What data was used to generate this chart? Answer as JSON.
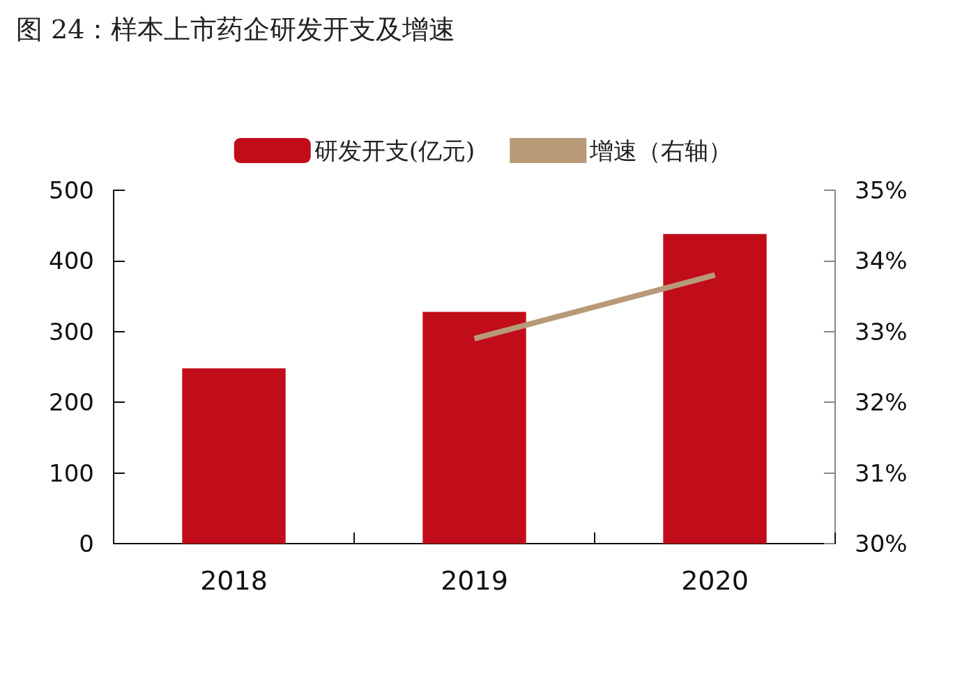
{
  "chart_data": {
    "type": "bar",
    "title": "图 24：样本上市药企研发开支及增速",
    "categories": [
      "2018",
      "2019",
      "2020"
    ],
    "series": [
      {
        "name": "研发开支(亿元)",
        "color": "#c00d19",
        "values": [
          248,
          328,
          438
        ]
      },
      {
        "name": "增速（右轴）",
        "type": "line",
        "axis": "y2",
        "color": "#b89a78",
        "values": [
          null,
          32.9,
          33.8
        ]
      }
    ],
    "ylim": [
      0,
      500
    ],
    "yticks": [
      0,
      100,
      200,
      300,
      400,
      500
    ],
    "y2lim": [
      30,
      35
    ],
    "y2ticks": [
      {
        "value": 30,
        "label": "30%"
      },
      {
        "value": 31,
        "label": "31%"
      },
      {
        "value": 32,
        "label": "32%"
      },
      {
        "value": 33,
        "label": "33%"
      },
      {
        "value": 34,
        "label": "34%"
      },
      {
        "value": 35,
        "label": "35%"
      }
    ],
    "legend": "top",
    "grid": false,
    "marker": "none",
    "line_style": "solid"
  }
}
